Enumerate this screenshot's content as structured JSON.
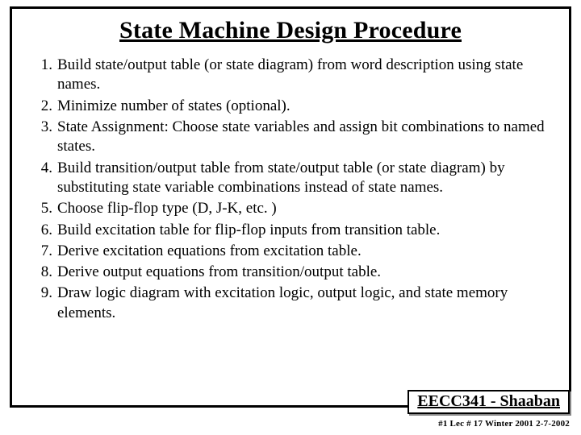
{
  "title": "State Machine Design Procedure",
  "items": [
    {
      "num": "1.",
      "text": "Build state/output table (or state diagram) from word description using state names."
    },
    {
      "num": "2.",
      "text": "Minimize number of states (optional)."
    },
    {
      "num": "3.",
      "text": "State Assignment: Choose state variables and assign bit combinations to named states."
    },
    {
      "num": "4.",
      "text": "Build transition/output table from state/output table (or state diagram) by substituting state variable combinations instead of state names."
    },
    {
      "num": "5.",
      "text": "Choose flip-flop type (D, J-K, etc. )"
    },
    {
      "num": "6.",
      "text": "Build excitation table for flip-flop inputs from transition table."
    },
    {
      "num": "7.",
      "text": "Derive excitation equations from excitation table."
    },
    {
      "num": "8.",
      "text": "Derive output equations from transition/output table."
    },
    {
      "num": "9.",
      "text": "Draw logic diagram with excitation logic, output logic, and state memory elements."
    }
  ],
  "footer_badge": "EECC341 - Shaaban",
  "sub_footer": "#1  Lec # 17   Winter 2001  2-7-2002"
}
